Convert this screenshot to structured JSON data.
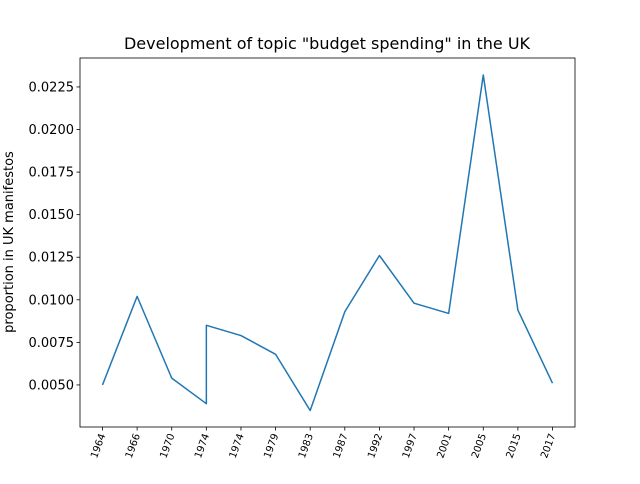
{
  "chart_data": {
    "type": "line",
    "title": "Development of topic \"budget spending\" in the UK",
    "ylabel": "proportion in UK manifestos",
    "x": [
      0,
      1,
      2,
      3,
      3,
      4,
      5,
      6,
      7,
      8,
      9,
      10,
      11,
      12,
      13
    ],
    "series": [
      {
        "name": "budget spending",
        "color": "#1f77b4",
        "values": [
          0.005,
          0.0102,
          0.0054,
          0.0039,
          0.0085,
          0.0079,
          0.0068,
          0.0035,
          0.0093,
          0.0126,
          0.0098,
          0.0092,
          0.0232,
          0.0094,
          0.0051
        ]
      }
    ],
    "xlim": [
      -0.65,
      13.65
    ],
    "xticks": [
      {
        "value": 0,
        "label": "1964"
      },
      {
        "value": 1,
        "label": "1966"
      },
      {
        "value": 2,
        "label": "1970"
      },
      {
        "value": 3,
        "label": "1974"
      },
      {
        "value": 4,
        "label": "1974"
      },
      {
        "value": 5,
        "label": "1979"
      },
      {
        "value": 6,
        "label": "1983"
      },
      {
        "value": 7,
        "label": "1987"
      },
      {
        "value": 8,
        "label": "1992"
      },
      {
        "value": 9,
        "label": "1997"
      },
      {
        "value": 10,
        "label": "2001"
      },
      {
        "value": 11,
        "label": "2005"
      },
      {
        "value": 12,
        "label": "2015"
      },
      {
        "value": 13,
        "label": "2017"
      }
    ],
    "ylim": [
      0.00253,
      0.0242
    ],
    "yticks": [
      {
        "value": 0.005,
        "label": "0.0050"
      },
      {
        "value": 0.0075,
        "label": "0.0075"
      },
      {
        "value": 0.01,
        "label": "0.0100"
      },
      {
        "value": 0.0125,
        "label": "0.0125"
      },
      {
        "value": 0.015,
        "label": "0.0150"
      },
      {
        "value": 0.0175,
        "label": "0.0175"
      },
      {
        "value": 0.02,
        "label": "0.0200"
      },
      {
        "value": 0.0225,
        "label": "0.0225"
      }
    ]
  }
}
